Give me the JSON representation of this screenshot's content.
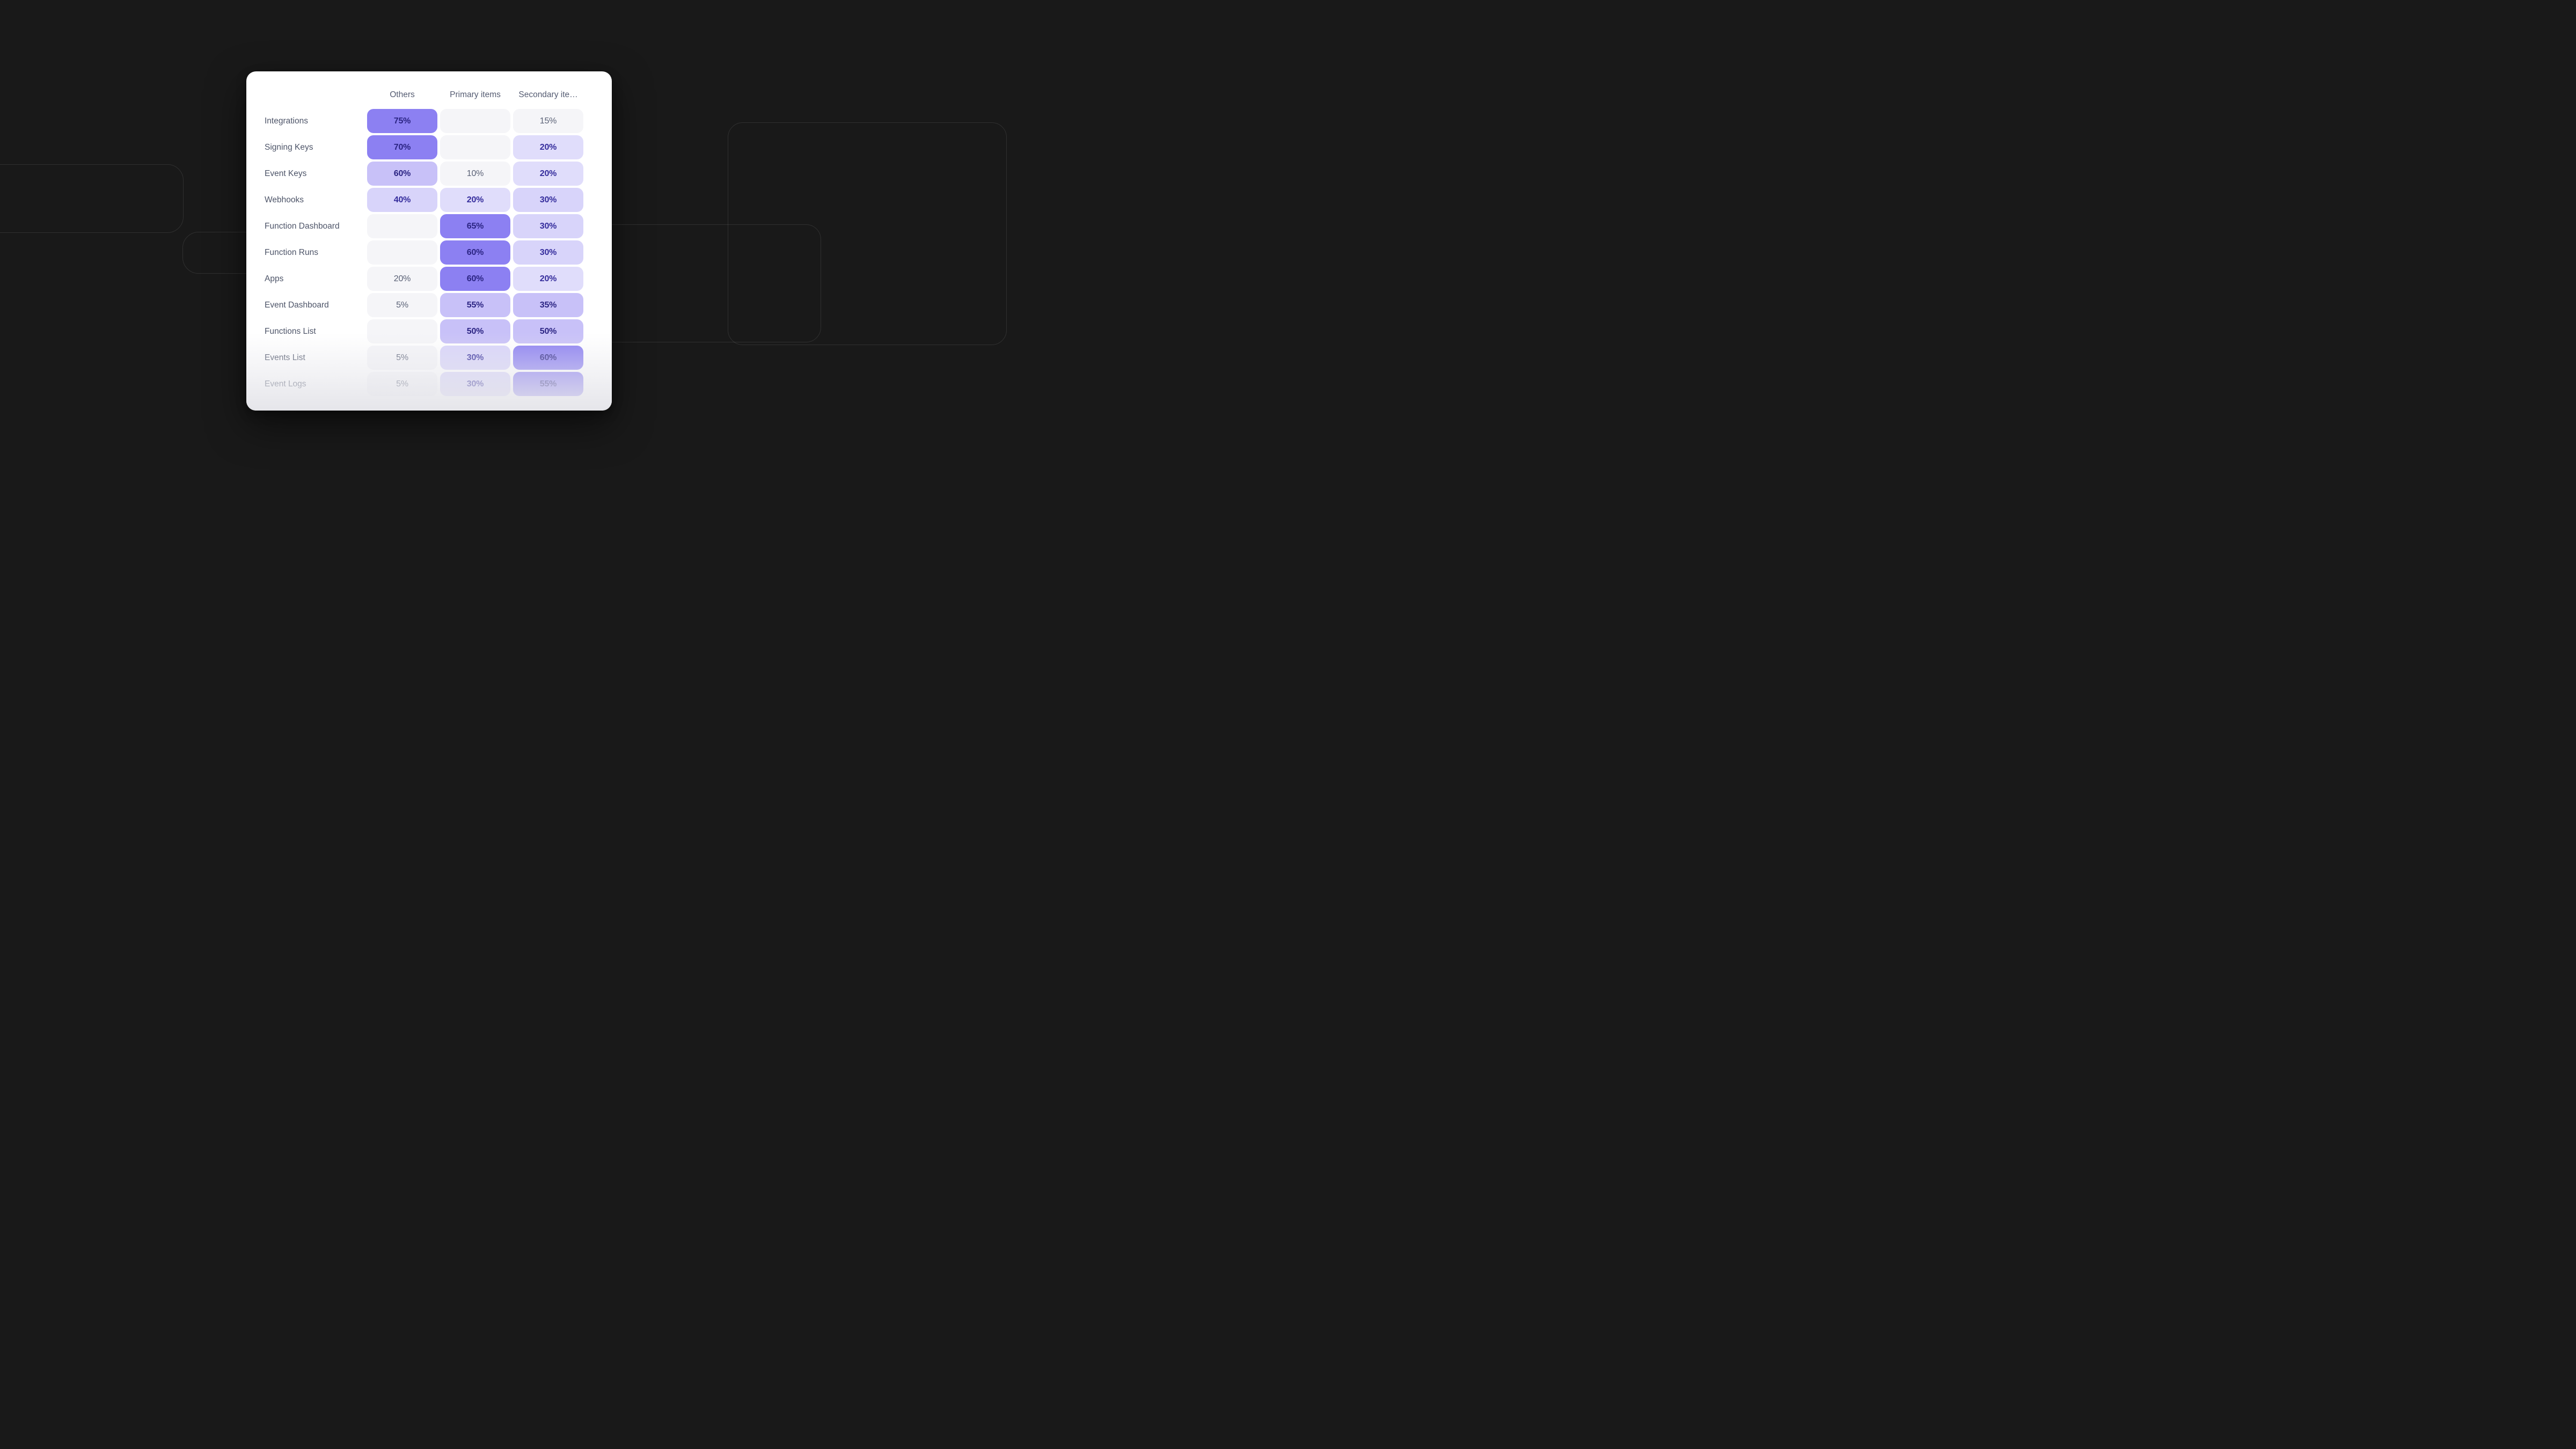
{
  "palette": {
    "page_bg": "#191919",
    "card_bg": "#FFFFFF",
    "outline": "rgba(255,255,255,0.10)",
    "strong_bg": "#8C80F2",
    "medium_bg": "#C8C1F8",
    "light_bg": "#D8D4FA",
    "lighter_bg": "#E0DDFB",
    "gray_bg": "#F5F5F8",
    "strong_text": "#2B2483",
    "purple_text": "#342C9C",
    "gray_text": "#5A6176",
    "label_color": "#4D5468",
    "header_color": "#555C72"
  },
  "chart_data": {
    "type": "heatmap",
    "title": "",
    "columns": [
      "Others",
      "Primary items",
      "Secondary ite…"
    ],
    "rows": [
      "Integrations",
      "Signing Keys",
      "Event Keys",
      "Webhooks",
      "Function Dashboard",
      "Function Runs",
      "Apps",
      "Event Dashboard",
      "Functions List",
      "Events List",
      "Event Logs"
    ],
    "values": [
      [
        75,
        null,
        15
      ],
      [
        70,
        null,
        20
      ],
      [
        60,
        10,
        20
      ],
      [
        40,
        20,
        30
      ],
      [
        null,
        65,
        30
      ],
      [
        null,
        60,
        30
      ],
      [
        20,
        60,
        20
      ],
      [
        5,
        55,
        35
      ],
      [
        null,
        50,
        50
      ],
      [
        5,
        30,
        60
      ],
      [
        5,
        30,
        55
      ]
    ],
    "labels": [
      [
        "75%",
        "",
        "15%"
      ],
      [
        "70%",
        "",
        "20%"
      ],
      [
        "60%",
        "10%",
        "20%"
      ],
      [
        "40%",
        "20%",
        "30%"
      ],
      [
        "",
        "65%",
        "30%"
      ],
      [
        "",
        "60%",
        "30%"
      ],
      [
        "20%",
        "60%",
        "20%"
      ],
      [
        "5%",
        "55%",
        "35%"
      ],
      [
        "",
        "50%",
        "50%"
      ],
      [
        "5%",
        "30%",
        "60%"
      ],
      [
        "5%",
        "30%",
        "55%"
      ]
    ],
    "levels": [
      [
        "s",
        "g",
        "g"
      ],
      [
        "s",
        "g",
        "xl"
      ],
      [
        "m",
        "g",
        "xl"
      ],
      [
        "l",
        "xl",
        "l"
      ],
      [
        "g",
        "s",
        "l"
      ],
      [
        "g",
        "s",
        "l"
      ],
      [
        "g",
        "s",
        "xl"
      ],
      [
        "g",
        "m",
        "m"
      ],
      [
        "g",
        "m",
        "m"
      ],
      [
        "g",
        "l",
        "s"
      ],
      [
        "g",
        "l",
        "s"
      ]
    ],
    "legend": "none",
    "grid": "off"
  }
}
